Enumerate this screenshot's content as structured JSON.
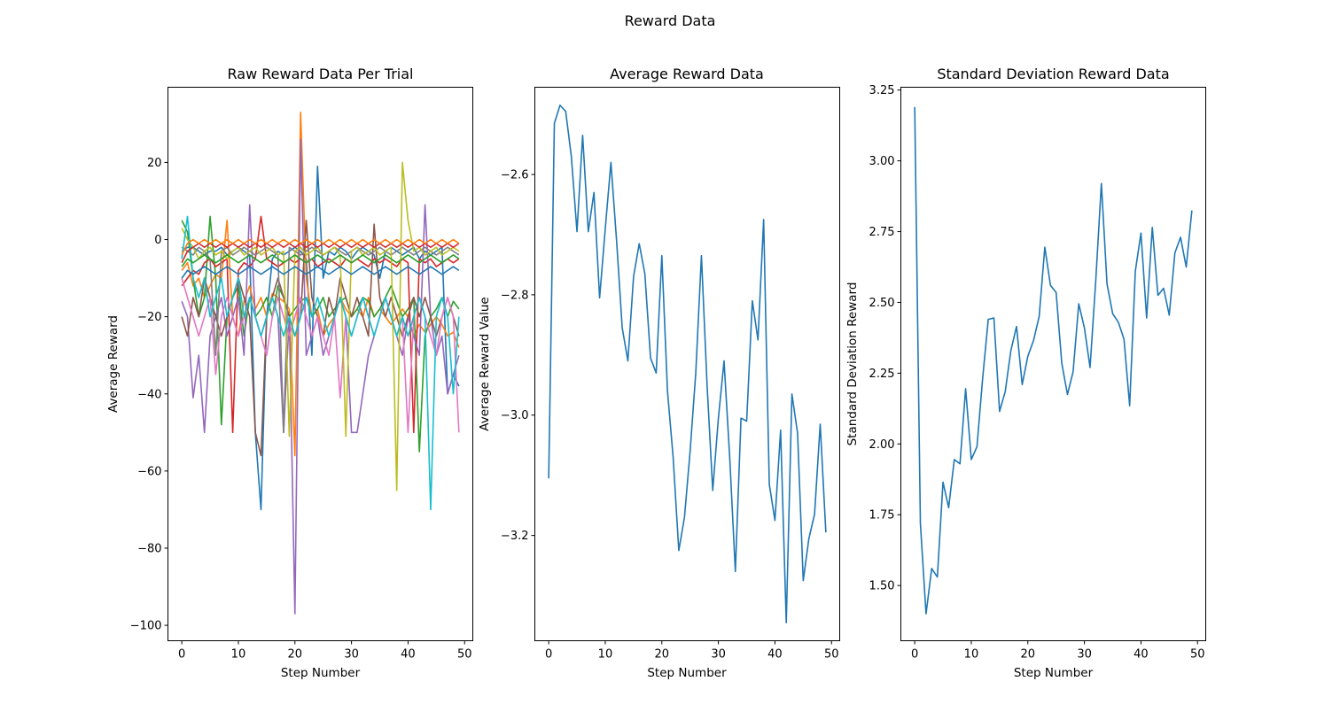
{
  "figure": {
    "suptitle": "Reward Data"
  },
  "chart_data": [
    {
      "type": "line",
      "title": "Raw Reward Data Per Trial",
      "xlabel": "Step Number",
      "ylabel": "Average Reward",
      "xlim": [
        -2.45,
        51.45
      ],
      "ylim": [
        -104,
        39.5
      ],
      "xticks": [
        0,
        10,
        20,
        30,
        40,
        50
      ],
      "yticks": [
        -100,
        -80,
        -60,
        -40,
        -20,
        0,
        20
      ],
      "tick_labels_x": [
        "0",
        "10",
        "20",
        "30",
        "40",
        "50"
      ],
      "tick_labels_y": [
        "−100",
        "−80",
        "−60",
        "−40",
        "−20",
        "0",
        "20"
      ],
      "grid": false,
      "legend": "none",
      "palette": [
        "#1f77b4",
        "#ff7f0e",
        "#2ca02c",
        "#d62728",
        "#9467bd",
        "#8c564b",
        "#e377c2",
        "#7f7f7f",
        "#bcbd22",
        "#17becf"
      ],
      "series": [
        {
          "values": [
            -3,
            -2,
            -2,
            -3,
            -4,
            -3,
            -3,
            -2,
            -4,
            -3,
            -2,
            -3,
            -4,
            -50,
            -70,
            -20,
            -5,
            -3,
            -4,
            -3,
            -2,
            -3,
            -5,
            -30,
            19,
            -10,
            -3,
            -4,
            -2,
            -3,
            -5,
            -3,
            -2,
            -3,
            -4,
            -10,
            -3,
            -2,
            -3,
            -4,
            -3,
            -2,
            -5,
            -3,
            -4,
            -3,
            -2,
            -40,
            -35,
            -38
          ],
          "color": "#1f77b4"
        },
        {
          "values": [
            -8,
            -6,
            -12,
            -10,
            -15,
            -12,
            -9,
            -10,
            5,
            -20,
            -25,
            -16,
            -12,
            -18,
            -15,
            -20,
            -14,
            -15,
            -16,
            -18,
            -56,
            33,
            -10,
            -20,
            -18,
            -25,
            -22,
            -20,
            -15,
            -18,
            -20,
            -18,
            -20,
            -15,
            -20,
            -18,
            -20,
            -22,
            -20,
            -18,
            -20,
            -25,
            -22,
            -24,
            -22,
            -20,
            -22,
            -25,
            -24,
            -28
          ],
          "color": "#ff7f0e"
        },
        {
          "values": [
            5,
            2,
            -10,
            -20,
            -15,
            6,
            -10,
            -48,
            -20,
            -15,
            -12,
            -25,
            -15,
            -20,
            -18,
            -15,
            -20,
            -12,
            -15,
            -20,
            -18,
            -16,
            -15,
            -20,
            -18,
            -15,
            -20,
            -18,
            -16,
            -15,
            -20,
            -18,
            -15,
            -16,
            -20,
            -18,
            -15,
            -12,
            -16,
            -20,
            -18,
            -15,
            -55,
            -25,
            -20,
            -18,
            -15,
            -20,
            -16,
            -18
          ],
          "color": "#2ca02c"
        },
        {
          "values": [
            -12,
            -10,
            -8,
            -9,
            -6,
            -5,
            -7,
            -6,
            -5,
            -50,
            -8,
            -6,
            -7,
            -5,
            6,
            -5,
            -6,
            -7,
            -6,
            -5,
            -6,
            -5,
            -6,
            -5,
            -7,
            -6,
            -5,
            -6,
            -7,
            -5,
            -6,
            -5,
            -6,
            -7,
            -5,
            -6,
            -5,
            -6,
            -7,
            -5,
            -6,
            -50,
            -5,
            -6,
            -5,
            -7,
            -6,
            -5,
            -6,
            -5
          ],
          "color": "#d62728"
        },
        {
          "values": [
            -16,
            -20,
            -41,
            -30,
            -50,
            -25,
            -20,
            -15,
            -25,
            -20,
            -15,
            -30,
            9,
            -20,
            -25,
            -20,
            -15,
            -20,
            -50,
            -20,
            -97,
            26,
            -30,
            -25,
            -20,
            -30,
            -25,
            -20,
            -15,
            -20,
            -50,
            -50,
            -40,
            -30,
            -25,
            -20,
            -15,
            -20,
            -25,
            -30,
            -20,
            -25,
            -30,
            9,
            -20,
            -30,
            -25,
            -40,
            -35,
            -30
          ],
          "color": "#9467bd"
        },
        {
          "values": [
            -20,
            -25,
            -15,
            -20,
            -10,
            -15,
            -20,
            -25,
            -20,
            -15,
            -10,
            -15,
            -20,
            -50,
            -56,
            -20,
            -15,
            -10,
            -15,
            -20,
            -25,
            -20,
            5,
            -15,
            -20,
            -25,
            -15,
            -20,
            -10,
            -15,
            -20,
            -15,
            -20,
            -25,
            4,
            -15,
            -20,
            -15,
            -20,
            -25,
            -20,
            -15,
            -20,
            -15,
            -20,
            -25,
            -20,
            -15,
            -20,
            -25
          ],
          "color": "#8c564b"
        },
        {
          "values": [
            -10,
            -15,
            -20,
            -25,
            -20,
            -15,
            -35,
            -20,
            -15,
            -20,
            -25,
            -20,
            -15,
            -20,
            -25,
            -30,
            -20,
            -15,
            -20,
            -25,
            -20,
            -15,
            -20,
            -25,
            -20,
            -25,
            -30,
            -20,
            -41,
            -20,
            -25,
            -20,
            -15,
            -20,
            -25,
            -20,
            -15,
            -20,
            -25,
            -20,
            -50,
            -20,
            -15,
            -20,
            -25,
            -30,
            -20,
            -15,
            -20,
            -50
          ],
          "color": "#e377c2"
        },
        {
          "values": [
            -2,
            -3,
            -4,
            -2,
            -3,
            -5,
            -30,
            -3,
            -2,
            -4,
            -3,
            -2,
            -3,
            -4,
            -3,
            -2,
            -3,
            -4,
            -50,
            -2,
            -3,
            -4,
            -3,
            -2,
            -3,
            -4,
            -3,
            -2,
            -3,
            -4,
            -3,
            -2,
            -3,
            -4,
            -3,
            -2,
            -3,
            -4,
            -3,
            -2,
            -3,
            -4,
            -3,
            -2,
            -3,
            -4,
            -3,
            -2,
            -3,
            -4
          ],
          "color": "#7f7f7f"
        },
        {
          "values": [
            3,
            0,
            -2,
            -5,
            -3,
            -2,
            -4,
            -3,
            -5,
            -3,
            -2,
            -4,
            -3,
            -2,
            -4,
            -3,
            -2,
            -4,
            -3,
            -51,
            -3,
            -2,
            -4,
            -3,
            -2,
            -4,
            -3,
            -2,
            -4,
            -51,
            -3,
            -2,
            -4,
            -3,
            -2,
            -4,
            -3,
            -2,
            -65,
            20,
            5,
            -3,
            -2,
            -4,
            -3,
            -2,
            -4,
            -3,
            -2,
            -3
          ],
          "color": "#bcbd22"
        },
        {
          "values": [
            -5,
            6,
            -10,
            -15,
            -10,
            -20,
            -15,
            -10,
            -20,
            -15,
            -10,
            -20,
            -15,
            -20,
            -25,
            -20,
            -15,
            -20,
            -25,
            -20,
            -25,
            -20,
            -15,
            -20,
            -15,
            -20,
            -25,
            -20,
            -15,
            -20,
            -25,
            -20,
            -15,
            -20,
            -25,
            -20,
            -15,
            -20,
            -25,
            -20,
            -25,
            -20,
            -15,
            -20,
            -70,
            -20,
            -15,
            -20,
            -40,
            -20
          ],
          "color": "#17becf"
        },
        {
          "values": [
            -6,
            -3,
            -2,
            -1,
            -2,
            -1,
            -2,
            -1,
            -2,
            -1,
            -2,
            -1,
            -2,
            -1,
            -2,
            -1,
            -2,
            -1,
            -2,
            -1,
            -2,
            -1,
            -2,
            -1,
            -2,
            -1,
            -2,
            -1,
            -2,
            -1,
            -2,
            -1,
            -2,
            -1,
            -2,
            -1,
            -2,
            -1,
            -2,
            -1,
            -2,
            -1,
            -2,
            -1,
            -2,
            -1,
            -2,
            -1,
            -2,
            -1
          ],
          "color": "#d62728"
        },
        {
          "values": [
            -4,
            -1,
            0,
            -1,
            0,
            -1,
            0,
            -1,
            0,
            -1,
            0,
            -1,
            0,
            -1,
            0,
            -1,
            0,
            -1,
            0,
            -1,
            0,
            -1,
            0,
            -1,
            0,
            -1,
            0,
            -1,
            0,
            -1,
            0,
            -1,
            0,
            -1,
            0,
            -1,
            0,
            -1,
            0,
            -1,
            0,
            -1,
            0,
            -1,
            0,
            -1,
            0,
            -1,
            0,
            -1
          ],
          "color": "#ff7f0e"
        },
        {
          "values": [
            -10,
            -8,
            -9,
            -8,
            -7,
            -8,
            -9,
            -8,
            -7,
            -8,
            -9,
            -8,
            -7,
            -8,
            -9,
            -8,
            -7,
            -8,
            -9,
            -8,
            -7,
            -8,
            -9,
            -8,
            -7,
            -8,
            -9,
            -8,
            -7,
            -8,
            -9,
            -8,
            -7,
            -8,
            -9,
            -8,
            -7,
            -8,
            -9,
            -8,
            -7,
            -8,
            -9,
            -8,
            -7,
            -8,
            -9,
            -8,
            -7,
            -8
          ],
          "color": "#1f77b4"
        },
        {
          "values": [
            -7,
            -5,
            -6,
            -5,
            -4,
            -5,
            -6,
            -5,
            -4,
            -5,
            -6,
            -5,
            -4,
            -5,
            -6,
            -5,
            -4,
            -5,
            -6,
            -5,
            -4,
            -5,
            -6,
            -5,
            -4,
            -5,
            -6,
            -5,
            -4,
            -5,
            -6,
            -5,
            -4,
            -5,
            -6,
            -5,
            -4,
            -5,
            -6,
            -5,
            -4,
            -5,
            -6,
            -5,
            -4,
            -5,
            -6,
            -5,
            -4,
            -5
          ],
          "color": "#2ca02c"
        }
      ]
    },
    {
      "type": "line",
      "title": "Average Reward Data",
      "xlabel": "Step Number",
      "ylabel": "Average Reward Value",
      "xlim": [
        -2.45,
        51.45
      ],
      "ylim": [
        -3.375,
        -2.455
      ],
      "xticks": [
        0,
        10,
        20,
        30,
        40,
        50
      ],
      "yticks": [
        -3.2,
        -3.0,
        -2.8,
        -2.6
      ],
      "tick_labels_x": [
        "0",
        "10",
        "20",
        "30",
        "40",
        "50"
      ],
      "tick_labels_y": [
        "−3.2",
        "−3.0",
        "−2.8",
        "−2.6"
      ],
      "grid": false,
      "legend": "none",
      "series": [
        {
          "color": "#1f77b4",
          "values": [
            -3.105,
            -2.515,
            -2.485,
            -2.495,
            -2.57,
            -2.695,
            -2.535,
            -2.695,
            -2.63,
            -2.805,
            -2.69,
            -2.58,
            -2.71,
            -2.855,
            -2.91,
            -2.77,
            -2.715,
            -2.765,
            -2.905,
            -2.93,
            -2.735,
            -2.96,
            -3.07,
            -3.225,
            -3.17,
            -3.06,
            -2.93,
            -2.735,
            -2.95,
            -3.125,
            -3.005,
            -2.91,
            -3.07,
            -3.26,
            -3.005,
            -3.01,
            -2.81,
            -2.875,
            -2.675,
            -3.115,
            -3.175,
            -3.025,
            -3.345,
            -2.965,
            -3.03,
            -3.275,
            -3.205,
            -3.165,
            -3.015,
            -3.195
          ]
        }
      ]
    },
    {
      "type": "line",
      "title": "Standard Deviation Reward Data",
      "xlabel": "Step Number",
      "ylabel": "Standard Deviation Reward",
      "xlim": [
        -2.45,
        51.45
      ],
      "ylim": [
        1.305,
        3.26
      ],
      "xticks": [
        0,
        10,
        20,
        30,
        40,
        50
      ],
      "yticks": [
        1.5,
        1.75,
        2.0,
        2.25,
        2.5,
        2.75,
        3.0,
        3.25
      ],
      "tick_labels_x": [
        "0",
        "10",
        "20",
        "30",
        "40",
        "50"
      ],
      "tick_labels_y": [
        "1.50",
        "1.75",
        "2.00",
        "2.25",
        "2.50",
        "2.75",
        "3.00",
        "3.25"
      ],
      "grid": false,
      "legend": "none",
      "series": [
        {
          "color": "#1f77b4",
          "values": [
            3.19,
            1.72,
            1.4,
            1.56,
            1.53,
            1.865,
            1.775,
            1.945,
            1.93,
            2.195,
            1.945,
            1.99,
            2.23,
            2.44,
            2.445,
            2.115,
            2.185,
            2.33,
            2.415,
            2.21,
            2.31,
            2.365,
            2.45,
            2.695,
            2.56,
            2.535,
            2.285,
            2.175,
            2.255,
            2.495,
            2.41,
            2.27,
            2.575,
            2.92,
            2.565,
            2.46,
            2.43,
            2.37,
            2.135,
            2.61,
            2.745,
            2.445,
            2.765,
            2.525,
            2.55,
            2.455,
            2.675,
            2.73,
            2.625,
            2.825
          ]
        }
      ]
    }
  ]
}
